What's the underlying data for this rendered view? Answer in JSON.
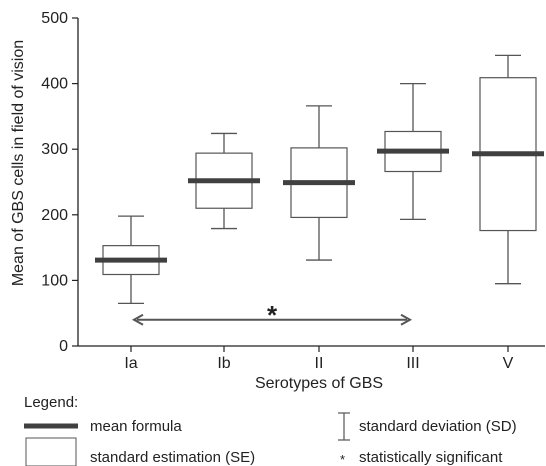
{
  "chart_data": {
    "type": "box",
    "xlabel": "Serotypes of GBS",
    "ylabel": "Mean of GBS cells in field of vision",
    "ylim": [
      0,
      500
    ],
    "yticks": [
      0,
      100,
      200,
      300,
      400,
      500
    ],
    "categories": [
      "Ia",
      "Ib",
      "II",
      "III",
      "V"
    ],
    "groups": [
      {
        "category": "Ia",
        "mean": 131,
        "se_low": 109,
        "se_high": 153,
        "sd_low": 65,
        "sd_high": 198
      },
      {
        "category": "Ib",
        "mean": 252,
        "se_low": 210,
        "se_high": 294,
        "sd_low": 179,
        "sd_high": 324
      },
      {
        "category": "II",
        "mean": 249,
        "se_low": 196,
        "se_high": 302,
        "sd_low": 131,
        "sd_high": 366
      },
      {
        "category": "III",
        "mean": 297,
        "se_low": 266,
        "se_high": 327,
        "sd_low": 193,
        "sd_high": 400
      },
      {
        "category": "V",
        "mean": 293,
        "se_low": 176,
        "se_high": 409,
        "sd_low": 95,
        "sd_high": 443
      }
    ],
    "significance": {
      "from": "Ia",
      "to": "III",
      "y": 40,
      "symbol": "*"
    },
    "legend": {
      "title": "Legend:",
      "items": {
        "mean": "mean formula",
        "se": "standard estimation (SE)",
        "sd": "standard deviation (SD)",
        "sig_symbol": "*",
        "sig": "statistically significant"
      }
    },
    "colors": {
      "mean": "#404040",
      "line": "#555555",
      "axis": "#222222"
    }
  }
}
